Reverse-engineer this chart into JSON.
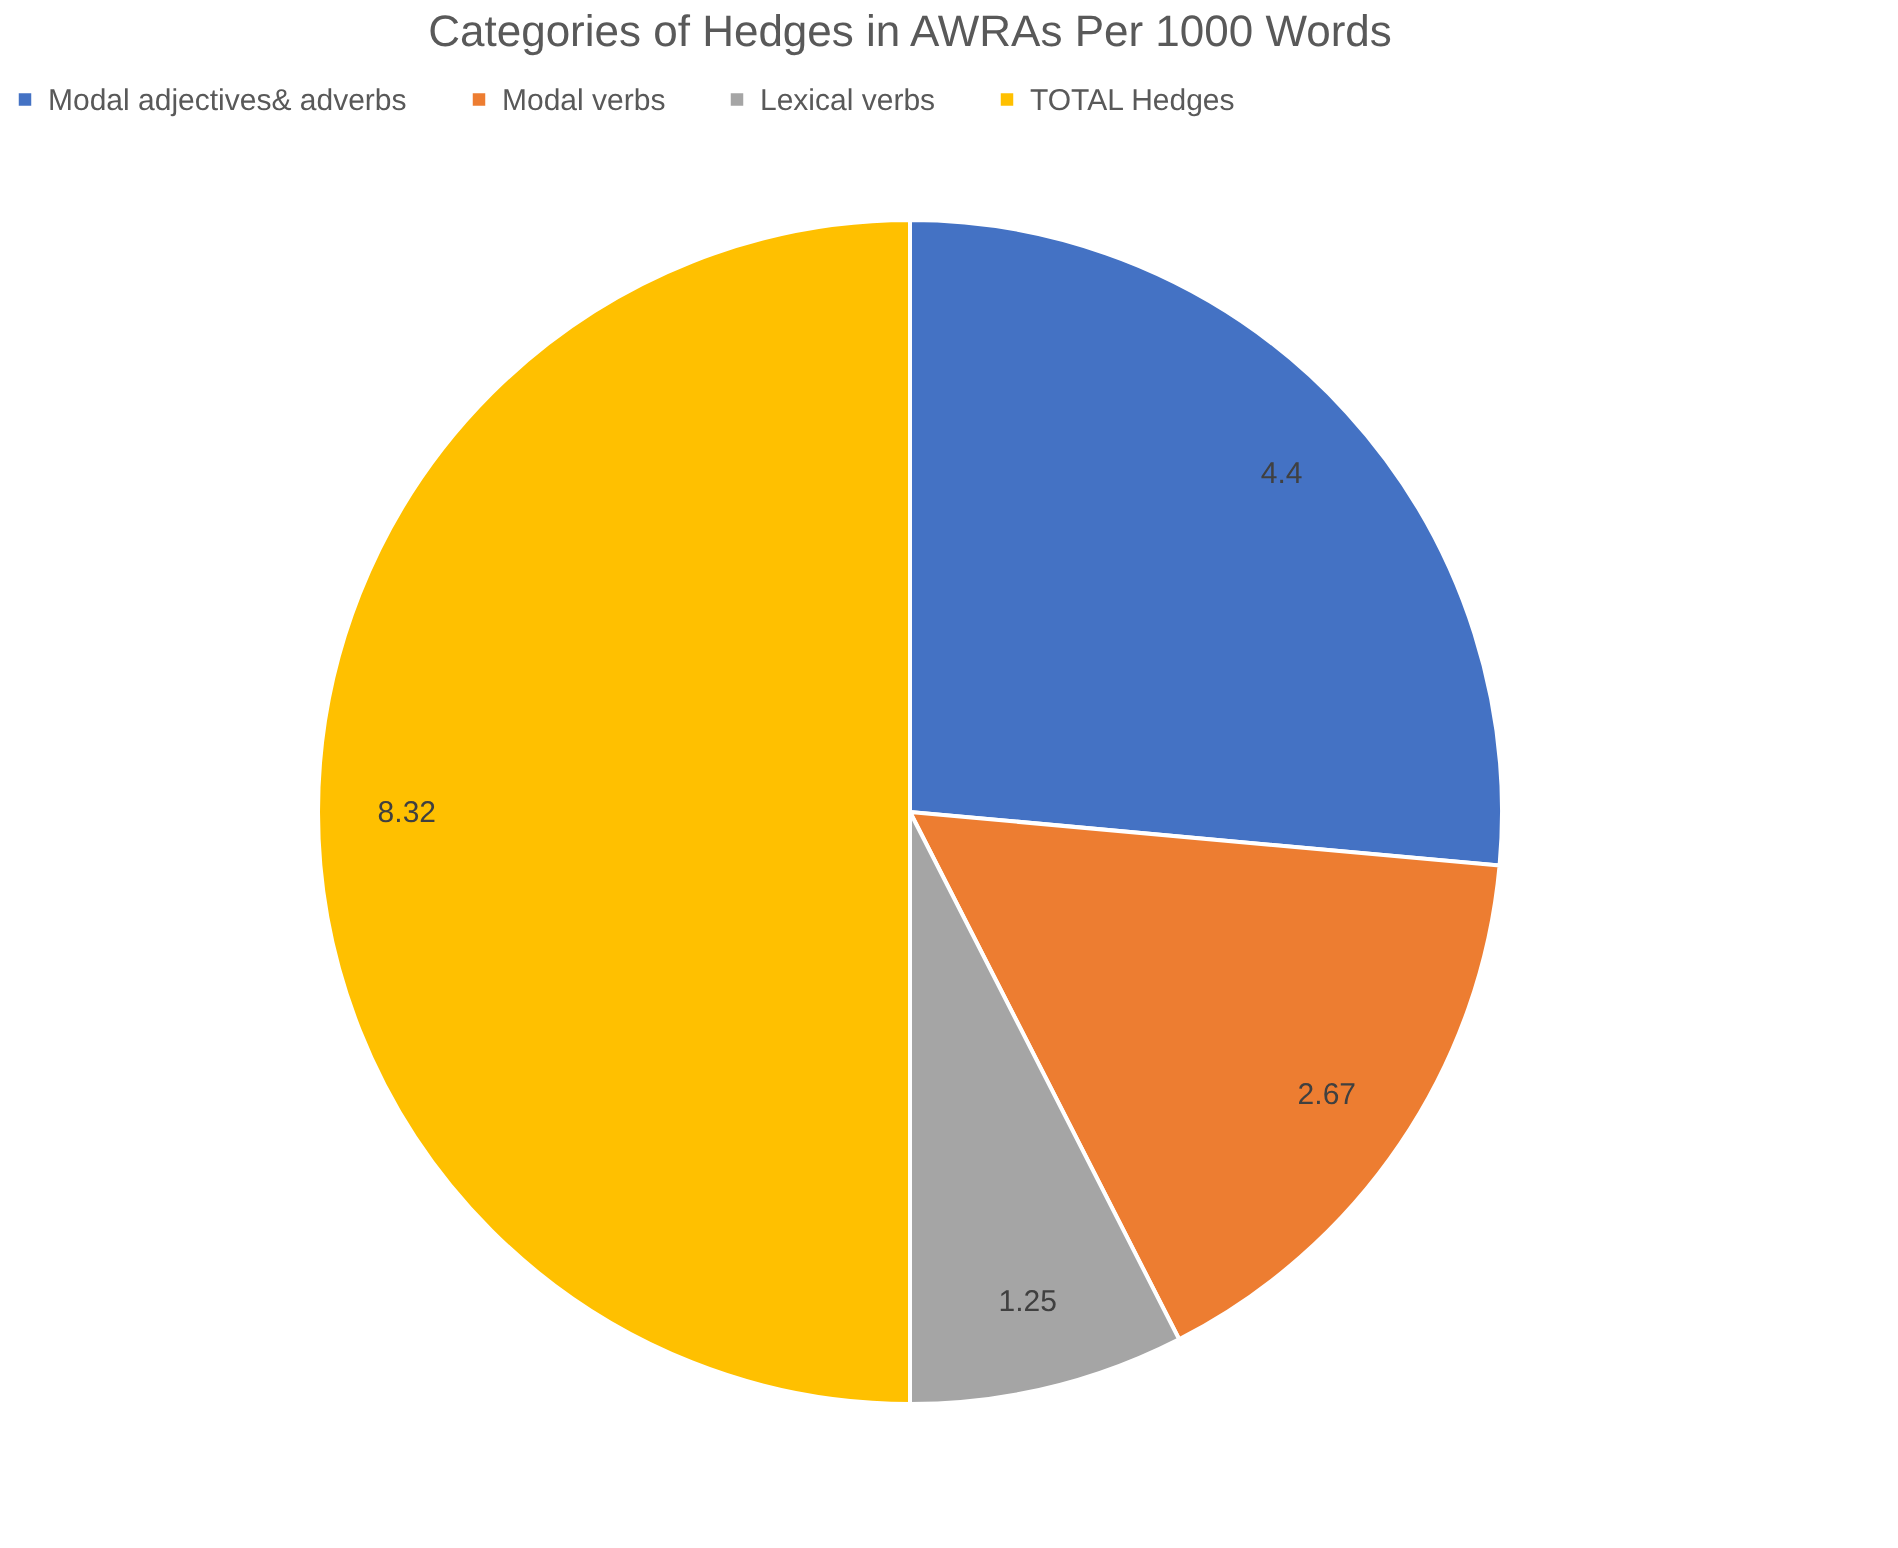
{
  "chart_data": {
    "type": "pie",
    "title": "Categories of Hedges in AWRAs Per 1000 Words",
    "categories": [
      "Modal adjectives& adverbs",
      "Modal verbs",
      "Lexical verbs",
      "TOTAL Hedges"
    ],
    "values": [
      4.4,
      2.67,
      1.25,
      8.32
    ],
    "colors": [
      "#4472c4",
      "#ed7d31",
      "#a5a5a5",
      "#ffc000"
    ],
    "data_labels": true,
    "legend": "top"
  }
}
